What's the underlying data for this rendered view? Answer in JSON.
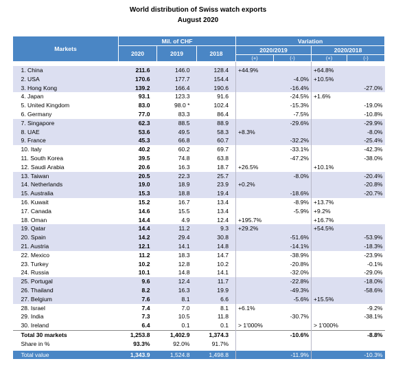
{
  "title": "World distribution of Swiss watch exports",
  "subtitle": "August 2020",
  "header": {
    "markets": "Markets",
    "money": "Mil. of CHF",
    "variation": "Variation",
    "years": [
      "2020",
      "2019",
      "2018"
    ],
    "periods": [
      "2020/2019",
      "2020/2018"
    ],
    "signs": [
      "(+)",
      "(-)",
      "(+)",
      "(-)"
    ]
  },
  "table": {
    "rows": [
      [
        "1. China",
        "211.6",
        "146.0",
        "128.4",
        "+44.9%",
        null,
        "+64.8%",
        null
      ],
      [
        "2. USA",
        "170.6",
        "177.7",
        "154.4",
        null,
        "-4.0%",
        "+10.5%",
        null
      ],
      [
        "3. Hong Kong",
        "139.2",
        "166.4",
        "190.6",
        null,
        "-16.4%",
        null,
        "-27.0%"
      ],
      [
        "4. Japan",
        "93.1",
        "123.3",
        "91.6",
        null,
        "-24.5%",
        "+1.6%",
        null
      ],
      [
        "5. United Kingdom",
        "83.0",
        "98.0 *",
        "102.4",
        null,
        "-15.3%",
        null,
        "-19.0%"
      ],
      [
        "6. Germany",
        "77.0",
        "83.3",
        "86.4",
        null,
        "-7.5%",
        null,
        "-10.8%"
      ],
      [
        "7. Singapore",
        "62.3",
        "88.5",
        "88.9",
        null,
        "-29.6%",
        null,
        "-29.9%"
      ],
      [
        "8. UAE",
        "53.6",
        "49.5",
        "58.3",
        "+8.3%",
        null,
        null,
        "-8.0%"
      ],
      [
        "9. France",
        "45.3",
        "66.8",
        "60.7",
        null,
        "-32.2%",
        null,
        "-25.4%"
      ],
      [
        "10. Italy",
        "40.2",
        "60.2",
        "69.7",
        null,
        "-33.1%",
        null,
        "-42.3%"
      ],
      [
        "11. South Korea",
        "39.5",
        "74.8",
        "63.8",
        null,
        "-47.2%",
        null,
        "-38.0%"
      ],
      [
        "12. Saudi Arabia",
        "20.6",
        "16.3",
        "18.7",
        "+26.5%",
        null,
        "+10.1%",
        null
      ],
      [
        "13. Taiwan",
        "20.5",
        "22.3",
        "25.7",
        null,
        "-8.0%",
        null,
        "-20.4%"
      ],
      [
        "14. Netherlands",
        "19.0",
        "18.9",
        "23.9",
        "+0.2%",
        null,
        null,
        "-20.8%"
      ],
      [
        "15. Australia",
        "15.3",
        "18.8",
        "19.4",
        null,
        "-18.6%",
        null,
        "-20.7%"
      ],
      [
        "16. Kuwait",
        "15.2",
        "16.7",
        "13.4",
        null,
        "-8.9%",
        "+13.7%",
        null
      ],
      [
        "17. Canada",
        "14.6",
        "15.5",
        "13.4",
        null,
        "-5.9%",
        "+9.2%",
        null
      ],
      [
        "18. Oman",
        "14.4",
        "4.9",
        "12.4",
        "+195.7%",
        null,
        "+16.7%",
        null
      ],
      [
        "19. Qatar",
        "14.4",
        "11.2",
        "9.3",
        "+29.2%",
        null,
        "+54.5%",
        null
      ],
      [
        "20. Spain",
        "14.2",
        "29.4",
        "30.8",
        null,
        "-51.6%",
        null,
        "-53.9%"
      ],
      [
        "21. Austria",
        "12.1",
        "14.1",
        "14.8",
        null,
        "-14.1%",
        null,
        "-18.3%"
      ],
      [
        "22. Mexico",
        "11.2",
        "18.3",
        "14.7",
        null,
        "-38.9%",
        null,
        "-23.9%"
      ],
      [
        "23. Turkey",
        "10.2",
        "12.8",
        "10.2",
        null,
        "-20.8%",
        null,
        "-0.1%"
      ],
      [
        "24. Russia",
        "10.1",
        "14.8",
        "14.1",
        null,
        "-32.0%",
        null,
        "-29.0%"
      ],
      [
        "25. Portugal",
        "9.6",
        "12.4",
        "11.7",
        null,
        "-22.8%",
        null,
        "-18.0%"
      ],
      [
        "26. Thailand",
        "8.2",
        "16.3",
        "19.9",
        null,
        "-49.3%",
        null,
        "-58.6%"
      ],
      [
        "27. Belgium",
        "7.6",
        "8.1",
        "6.6",
        null,
        "-5.6%",
        "+15.5%",
        null
      ],
      [
        "28. Israel",
        "7.4",
        "7.0",
        "8.1",
        "+6.1%",
        null,
        null,
        "-9.2%"
      ],
      [
        "29. India",
        "7.3",
        "10.5",
        "11.8",
        null,
        "-30.7%",
        null,
        "-38.1%"
      ],
      [
        "30. Ireland",
        "6.4",
        "0.1",
        "0.1",
        "> 1'000%",
        null,
        "> 1'000%",
        null
      ]
    ],
    "totals": [
      [
        "Total 30 markets",
        "1,253.8",
        "1,402.9",
        "1,374.3",
        null,
        "-10.6%",
        null,
        "-8.8%"
      ],
      [
        "Share in %",
        "93.3%",
        "92.0%",
        "91.7%",
        null,
        null,
        null,
        null
      ]
    ],
    "grand_total": [
      "Total value",
      "1,343.9",
      "1,524.8",
      "1,498.8",
      null,
      "-11.9%",
      null,
      "-10.3%"
    ]
  }
}
